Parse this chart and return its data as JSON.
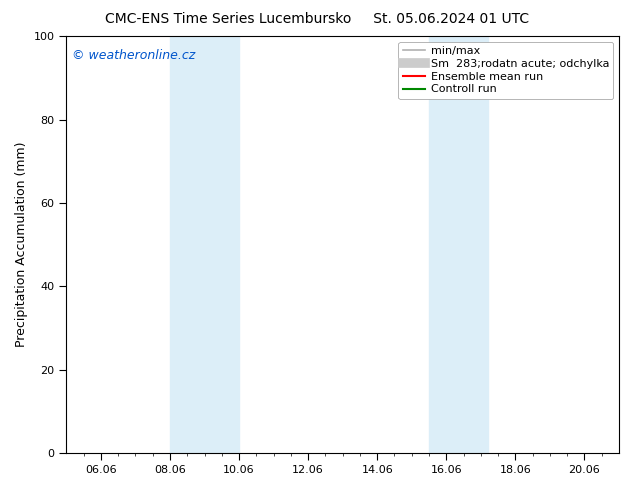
{
  "title_left": "CMC-ENS Time Series Lucembursko",
  "title_right": "St. 05.06.2024 01 UTC",
  "ylabel": "Precipitation Accumulation (mm)",
  "watermark": "© weatheronline.cz",
  "watermark_color": "#0055cc",
  "ylim": [
    0,
    100
  ],
  "xlim_start": 5.0,
  "xlim_end": 21.0,
  "xtick_positions": [
    6,
    8,
    10,
    12,
    14,
    16,
    18,
    20
  ],
  "xtick_labels": [
    "06.06",
    "08.06",
    "10.06",
    "12.06",
    "14.06",
    "16.06",
    "18.06",
    "20.06"
  ],
  "ytick_positions": [
    0,
    20,
    40,
    60,
    80,
    100
  ],
  "shaded_regions": [
    {
      "x_start": 8.0,
      "x_end": 10.0,
      "color": "#dceef8"
    },
    {
      "x_start": 15.5,
      "x_end": 17.2,
      "color": "#dceef8"
    }
  ],
  "legend_entries": [
    {
      "label": "min/max",
      "color": "#b0b0b0",
      "linewidth": 1.2,
      "linestyle": "-"
    },
    {
      "label": "Sm  283;rodatn acute; odchylka",
      "color": "#cccccc",
      "linewidth": 7,
      "linestyle": "-"
    },
    {
      "label": "Ensemble mean run",
      "color": "#ff0000",
      "linewidth": 1.5,
      "linestyle": "-"
    },
    {
      "label": "Controll run",
      "color": "#008800",
      "linewidth": 1.5,
      "linestyle": "-"
    }
  ],
  "background_color": "#ffffff",
  "plot_bg_color": "#ffffff",
  "title_fontsize": 10,
  "ylabel_fontsize": 9,
  "tick_fontsize": 8,
  "legend_fontsize": 8,
  "watermark_fontsize": 9
}
